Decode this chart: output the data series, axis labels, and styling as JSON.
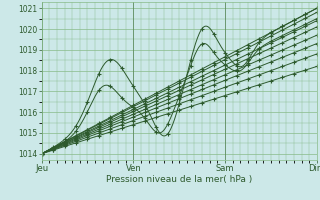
{
  "bg_color": "#cce8e8",
  "grid_color": "#88bb88",
  "line_color": "#2d5a2d",
  "ylim": [
    1013.7,
    1021.3
  ],
  "yticks": [
    1014,
    1015,
    1016,
    1017,
    1018,
    1019,
    1020,
    1021
  ],
  "xlabel": "Pression niveau de la mer( hPa )",
  "day_labels": [
    "Jeu",
    "Ven",
    "Sam",
    "Dim"
  ],
  "day_positions": [
    0,
    96,
    192,
    288
  ],
  "figsize": [
    3.2,
    2.0
  ],
  "dpi": 100
}
